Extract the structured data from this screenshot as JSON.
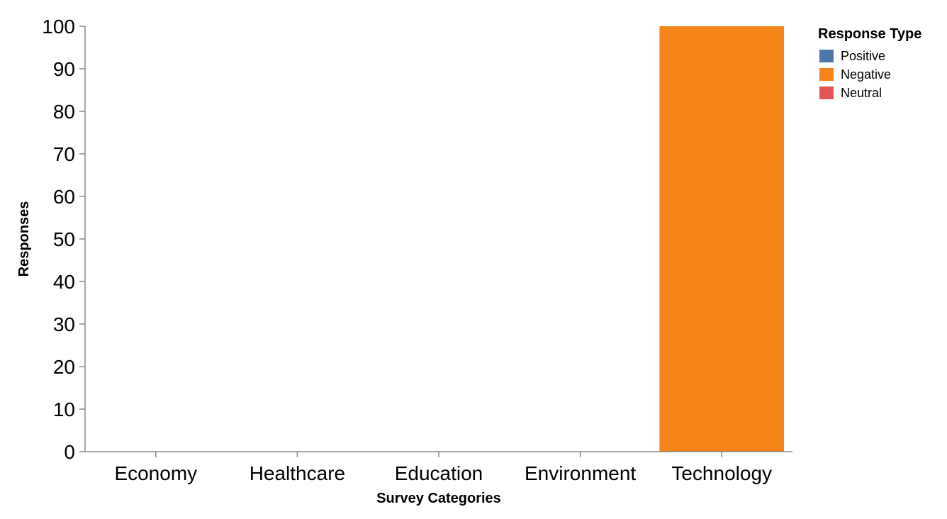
{
  "chart_data": {
    "type": "bar",
    "stacked": true,
    "xlabel": "Survey Categories",
    "ylabel": "Responses",
    "categories": [
      "Economy",
      "Healthcare",
      "Education",
      "Environment",
      "Technology"
    ],
    "yticks": [
      0,
      10,
      20,
      30,
      40,
      50,
      60,
      70,
      80,
      90,
      100
    ],
    "ylim": [
      0,
      100
    ],
    "grid": false,
    "legend": {
      "title": "Response Type",
      "placement": "top-right",
      "entries": [
        {
          "name": "Positive",
          "color": "#4c78a8"
        },
        {
          "name": "Negative",
          "color": "#f58518"
        },
        {
          "name": "Neutral",
          "color": "#e45756"
        }
      ]
    },
    "series": [
      {
        "name": "Positive",
        "color": "#4c78a8",
        "values": [
          0,
          0,
          0,
          0,
          0
        ]
      },
      {
        "name": "Negative",
        "color": "#f58518",
        "values": [
          0,
          0,
          0,
          0,
          100
        ]
      },
      {
        "name": "Neutral",
        "color": "#e45756",
        "values": [
          0,
          0,
          0,
          0,
          0
        ]
      }
    ]
  }
}
